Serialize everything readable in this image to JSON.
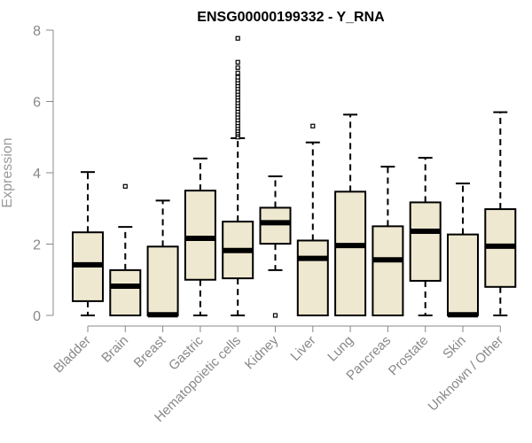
{
  "chart_data": {
    "type": "boxplot",
    "title": "ENSG00000199332 - Y_RNA",
    "xlabel": "",
    "ylabel": "Expression",
    "ylim": [
      0,
      8
    ],
    "yticks": [
      "0",
      "2",
      "4",
      "6",
      "8"
    ],
    "box_fill": "#efe8d0",
    "categories": [
      "Bladder",
      "Brain",
      "Breast",
      "Gastric",
      "Hematopoietic cells",
      "Kidney",
      "Liver",
      "Lung",
      "Pancreas",
      "Prostate",
      "Skin",
      "Unknown / Other"
    ],
    "boxes": [
      {
        "whisker_low": 0,
        "q1": 0.4,
        "median": 1.42,
        "q3": 2.33,
        "whisker_high": 4.02,
        "outliers": []
      },
      {
        "whisker_low": 0,
        "q1": 0,
        "median": 0.82,
        "q3": 1.27,
        "whisker_high": 2.48,
        "outliers": [
          3.62
        ]
      },
      {
        "whisker_low": 0,
        "q1": 0,
        "median": 0.02,
        "q3": 1.93,
        "whisker_high": 3.22,
        "outliers": []
      },
      {
        "whisker_low": 0,
        "q1": 1.0,
        "median": 2.16,
        "q3": 3.5,
        "whisker_high": 4.4,
        "outliers": []
      },
      {
        "whisker_low": 0,
        "q1": 1.04,
        "median": 1.82,
        "q3": 2.63,
        "whisker_high": 4.97,
        "outliers": [
          5.0,
          5.07,
          5.12,
          5.18,
          5.25,
          5.32,
          5.4,
          5.48,
          5.56,
          5.64,
          5.72,
          5.8,
          5.88,
          5.96,
          6.04,
          6.12,
          6.2,
          6.28,
          6.36,
          6.44,
          6.52,
          6.6,
          6.68,
          6.8,
          6.95,
          7.1,
          7.77
        ]
      },
      {
        "whisker_low": 1.27,
        "q1": 2.01,
        "median": 2.6,
        "q3": 3.02,
        "whisker_high": 3.9,
        "outliers": [
          0
        ]
      },
      {
        "whisker_low": 0,
        "q1": 0,
        "median": 1.6,
        "q3": 2.1,
        "whisker_high": 4.85,
        "outliers": [
          5.31
        ]
      },
      {
        "whisker_low": 0,
        "q1": 0,
        "median": 1.96,
        "q3": 3.47,
        "whisker_high": 5.63,
        "outliers": []
      },
      {
        "whisker_low": 0,
        "q1": 0,
        "median": 1.56,
        "q3": 2.5,
        "whisker_high": 4.17,
        "outliers": []
      },
      {
        "whisker_low": 0,
        "q1": 0.97,
        "median": 2.36,
        "q3": 3.17,
        "whisker_high": 4.42,
        "outliers": []
      },
      {
        "whisker_low": 0,
        "q1": 0,
        "median": 0.02,
        "q3": 2.27,
        "whisker_high": 3.7,
        "outliers": []
      },
      {
        "whisker_low": 0,
        "q1": 0.8,
        "median": 1.94,
        "q3": 2.98,
        "whisker_high": 5.7,
        "outliers": []
      }
    ]
  }
}
